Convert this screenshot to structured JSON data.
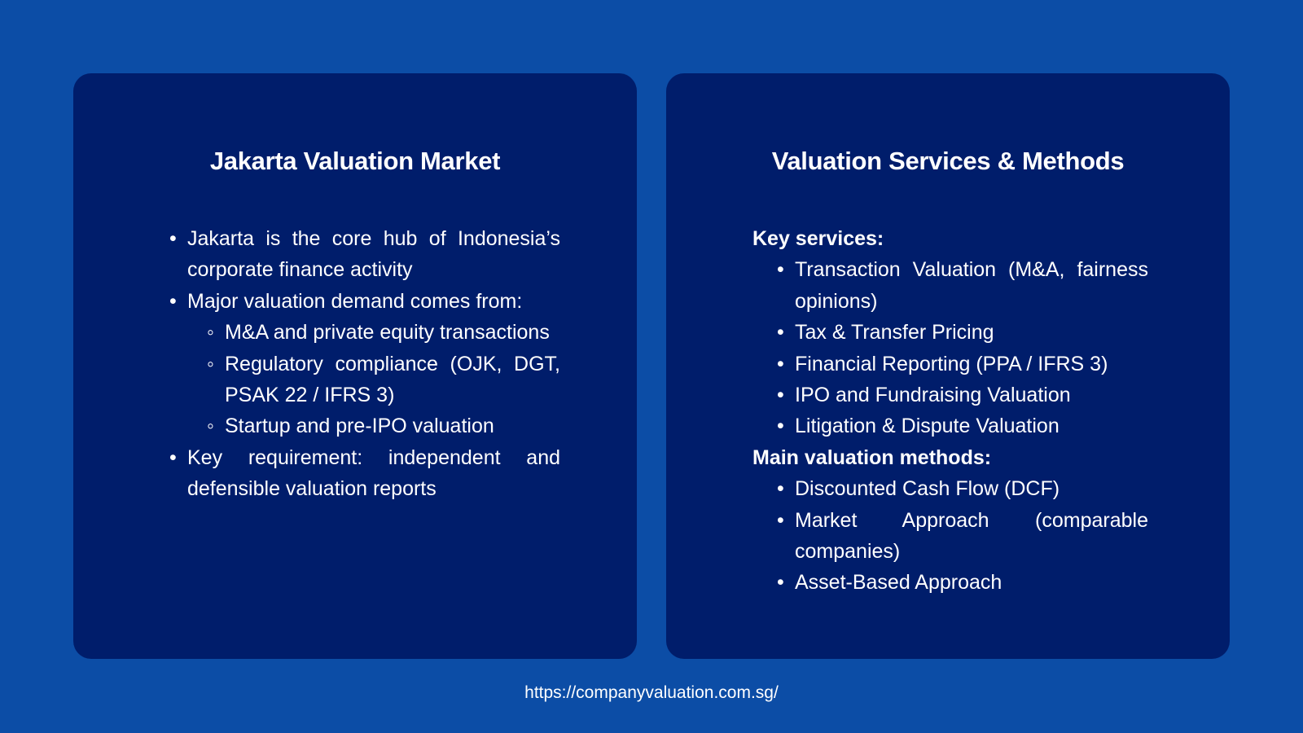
{
  "left": {
    "title": "Jakarta Valuation Market",
    "bullets": [
      "Jakarta is the core hub of Indonesia’s corporate finance activity",
      "Major valuation demand comes from:",
      "Key requirement: independent and defensible valuation reports"
    ],
    "sub_bullets": [
      "M&A and private equity transactions",
      "Regulatory compliance (OJK, DGT, PSAK 22 / IFRS 3)",
      "Startup and pre-IPO valuation"
    ]
  },
  "right": {
    "title": "Valuation Services & Methods",
    "services_heading": "Key services:",
    "services": [
      "Transaction Valuation (M&A, fairness opinions)",
      "Tax & Transfer Pricing",
      "Financial Reporting (PPA / IFRS 3)",
      "IPO and Fundraising Valuation",
      "Litigation & Dispute Valuation"
    ],
    "methods_heading": "Main valuation methods:",
    "methods": [
      "Discounted Cash Flow (DCF)",
      "Market Approach (comparable companies)",
      "Asset-Based Approach"
    ]
  },
  "footer": {
    "url": "https://companyvaluation.com.sg/"
  },
  "colors": {
    "background": "#0c4da6",
    "card": "#001d6b",
    "text": "#ffffff"
  }
}
